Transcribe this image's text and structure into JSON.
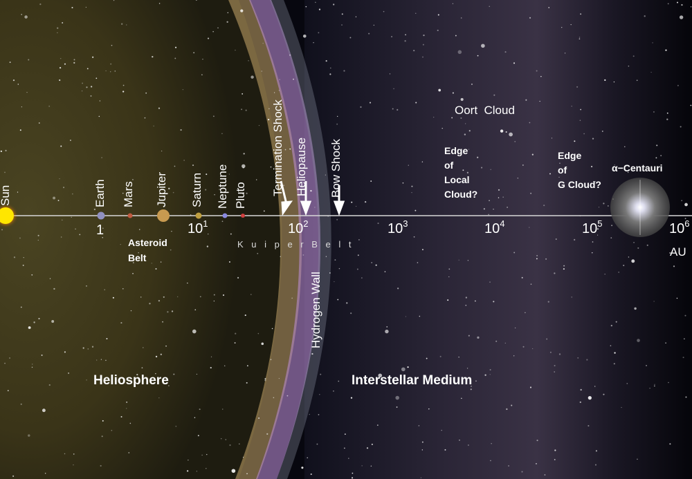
{
  "axis": {
    "scale": "log",
    "unit": "AU",
    "range": [
      1,
      1000000
    ],
    "ticks": [
      {
        "base": "1",
        "exp": ""
      },
      {
        "base": "10",
        "exp": "1"
      },
      {
        "base": "10",
        "exp": "2"
      },
      {
        "base": "10",
        "exp": "3"
      },
      {
        "base": "10",
        "exp": "4"
      },
      {
        "base": "10",
        "exp": "5"
      },
      {
        "base": "10",
        "exp": "6"
      }
    ]
  },
  "bodies": [
    "Sun",
    "Earth",
    "Mars",
    "Jupiter",
    "Saturn",
    "Neptune",
    "Pluto"
  ],
  "boundaries": {
    "termination_shock": "Termination Shock",
    "heliopause": "Heliopause",
    "bow_shock": "Bow Shock",
    "hydrogen_wall": "Hydrogen Wall"
  },
  "regions": {
    "asteroid_belt": [
      "Asteroid",
      "Belt"
    ],
    "kuiper_belt": "K u i p e r  B e l t",
    "oort_cloud": "Oort  Cloud",
    "local_cloud": [
      "Edge",
      "of",
      "Local",
      "Cloud?"
    ],
    "g_cloud": [
      "Edge",
      "of",
      "G Cloud?"
    ],
    "alpha_centauri": "α−Centauri",
    "heliosphere": "Heliosphere",
    "interstellar": "Interstellar Medium"
  },
  "colors": {
    "heliosphere": "#6b5e2a",
    "hydrogen_wall": "#b88ad0",
    "space": "#07070f",
    "sun": "#ffe600"
  }
}
